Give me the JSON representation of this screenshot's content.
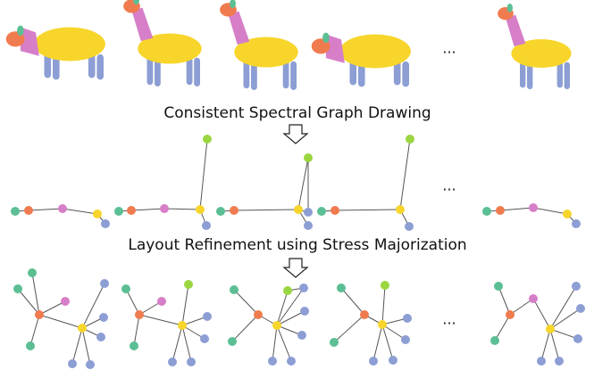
{
  "steps": [
    {
      "label": "Consistent Spectral Graph Drawing"
    },
    {
      "label": "Layout Refinement using Stress Majorization"
    }
  ],
  "ellipses": [
    "...",
    "...",
    "..."
  ]
}
